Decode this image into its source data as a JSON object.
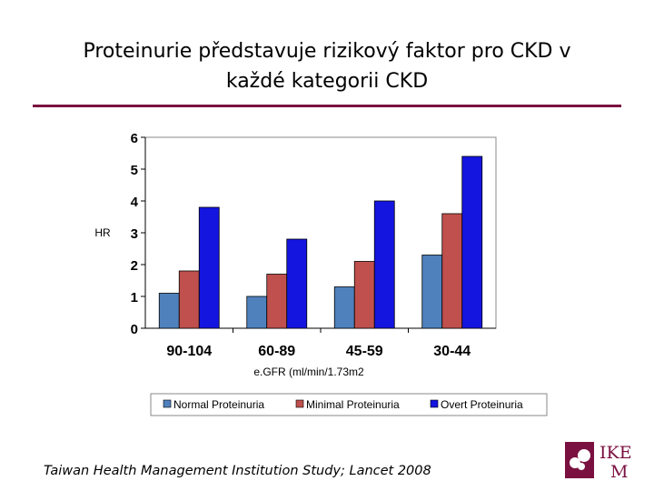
{
  "slide": {
    "title_line1": "Proteinurie představuje rizikový faktor pro CKD v",
    "title_line2": "každé kategorii CKD",
    "footer": "Taiwan Health Management Institution Study; Lancet 2008",
    "logo_text_top": "IKEM",
    "logo_text_bottom": "M",
    "accent_color": "#7a1040"
  },
  "chart_data": {
    "type": "bar",
    "title": "",
    "xlabel": "e.GFR (ml/min/1.73m2",
    "ylabel": "HR",
    "categories": [
      "90-104",
      "60-89",
      "45-59",
      "30-44"
    ],
    "ylim": [
      0,
      6
    ],
    "yticks": [
      0,
      1,
      2,
      3,
      4,
      5,
      6
    ],
    "grid": false,
    "legend_position": "bottom",
    "series": [
      {
        "name": "Normal Proteinuria",
        "color": "#4f81bd",
        "values": [
          1.1,
          1.0,
          1.3,
          2.3
        ]
      },
      {
        "name": "Minimal Proteinuria",
        "color": "#c0504d",
        "values": [
          1.8,
          1.7,
          2.1,
          3.6
        ]
      },
      {
        "name": "Overt Proteinuria",
        "color": "#1515e0",
        "values": [
          3.8,
          2.8,
          4.0,
          5.4
        ]
      }
    ]
  }
}
